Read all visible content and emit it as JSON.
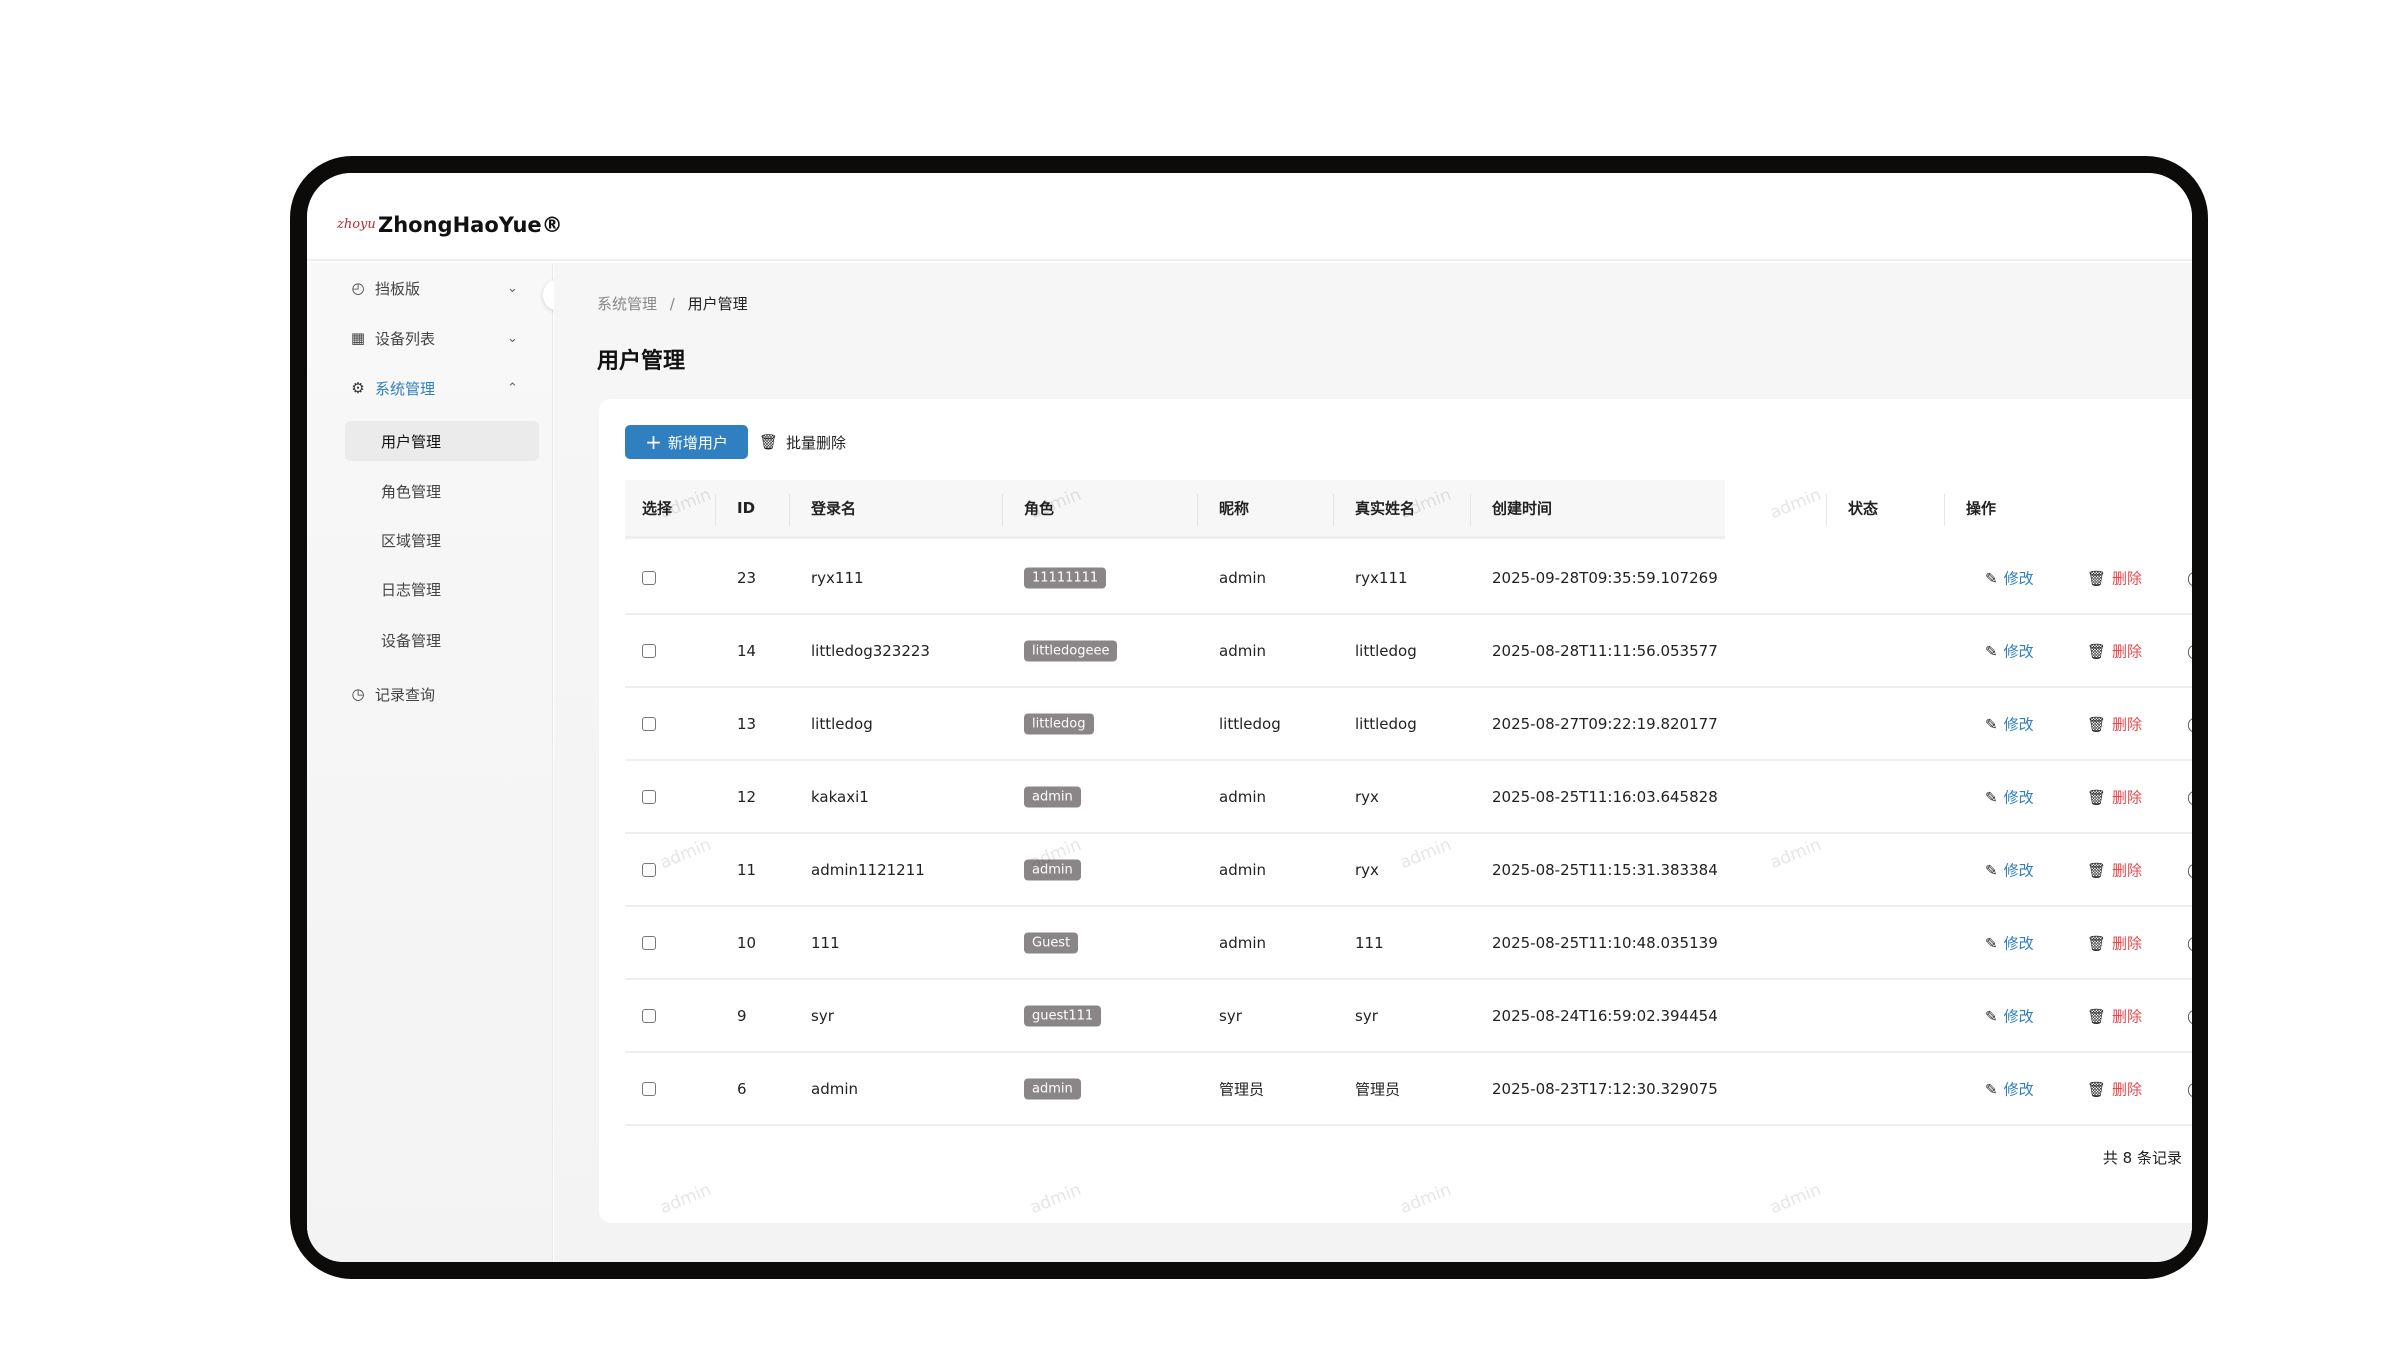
{
  "app": {
    "logo_mark": "zhoyu",
    "title": "ZhongHaoYue®"
  },
  "sidebar": {
    "items": [
      {
        "label": "挡板版",
        "icon": "dashboard-icon",
        "chevron": "chevron-down"
      },
      {
        "label": "设备列表",
        "icon": "grid-icon",
        "chevron": "chevron-down"
      },
      {
        "label": "系统管理",
        "icon": "gear-icon",
        "chevron": "chevron-up",
        "expanded": true
      },
      {
        "label": "用户管理",
        "active": true
      },
      {
        "label": "角色管理"
      },
      {
        "label": "区域管理"
      },
      {
        "label": "日志管理"
      },
      {
        "label": "设备管理"
      },
      {
        "label": "记录查询",
        "icon": "clock-icon"
      }
    ]
  },
  "breadcrumb": {
    "parent": "系统管理",
    "separator": "/",
    "current": "用户管理"
  },
  "page_title": "用户管理",
  "toolbar": {
    "add_label": "新增用户",
    "batch_delete_label": "批量删除"
  },
  "table": {
    "columns": [
      "选择",
      "ID",
      "登录名",
      "角色",
      "昵称",
      "真实姓名",
      "创建时间",
      "状态",
      "操作"
    ],
    "rows": [
      {
        "id": "23",
        "login": "ryx111",
        "role": "11111111",
        "nick": "admin",
        "real": "ryx111",
        "created": "2025-09-28T09:35:59.107269",
        "enabled": true
      },
      {
        "id": "14",
        "login": "littledog323223",
        "role": "littledogeee",
        "nick": "admin",
        "real": "littledog",
        "created": "2025-08-28T11:11:56.053577",
        "enabled": true
      },
      {
        "id": "13",
        "login": "littledog",
        "role": "littledog",
        "nick": "littledog",
        "real": "littledog",
        "created": "2025-08-27T09:22:19.820177",
        "enabled": true
      },
      {
        "id": "12",
        "login": "kakaxi1",
        "role": "admin",
        "nick": "admin",
        "real": "ryx",
        "created": "2025-08-25T11:16:03.645828",
        "enabled": true
      },
      {
        "id": "11",
        "login": "admin1121211",
        "role": "admin",
        "nick": "admin",
        "real": "ryx",
        "created": "2025-08-25T11:15:31.383384",
        "enabled": true
      },
      {
        "id": "10",
        "login": "111",
        "role": "Guest",
        "nick": "admin",
        "real": "111",
        "created": "2025-08-25T11:10:48.035139",
        "enabled": true
      },
      {
        "id": "9",
        "login": "syr",
        "role": "guest111",
        "nick": "syr",
        "real": "syr",
        "created": "2025-08-24T16:59:02.394454",
        "enabled": true
      },
      {
        "id": "6",
        "login": "admin",
        "role": "admin",
        "nick": "管理员",
        "real": "管理员",
        "created": "2025-08-23T17:12:30.329075",
        "enabled": true
      }
    ],
    "edit_label": "修改",
    "delete_label": "删除"
  },
  "footer": {
    "total": "共 8 条记录"
  },
  "watermark": "admin",
  "colors": {
    "accent": "#2f7fc1",
    "danger": "#e5484d",
    "tag": "#8a8687"
  }
}
